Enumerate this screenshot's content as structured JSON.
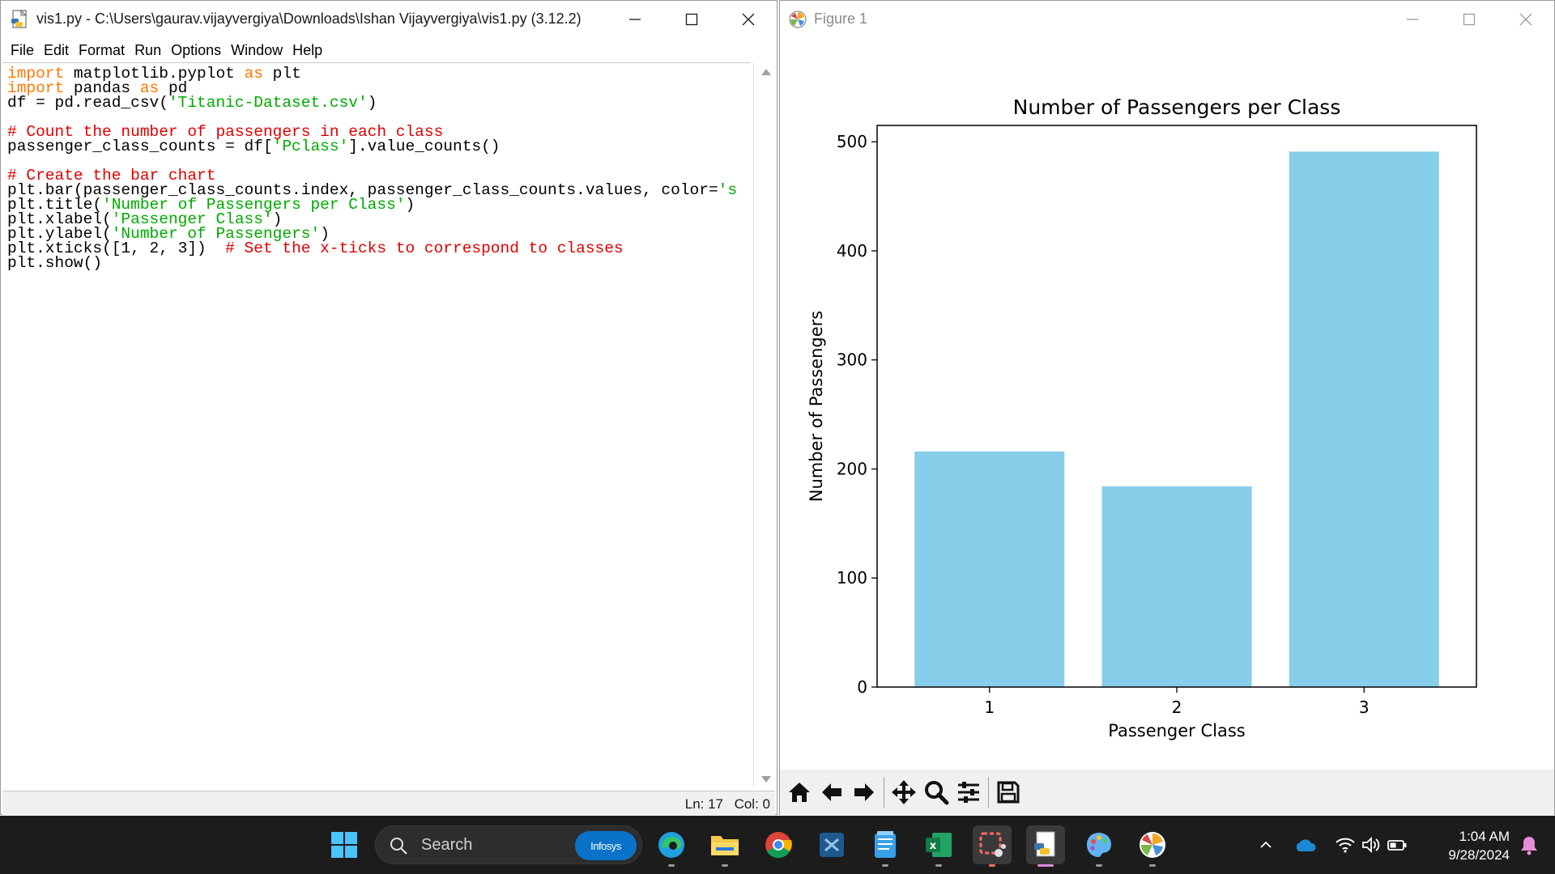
{
  "idle": {
    "title": "vis1.py - C:\\Users\\gaurav.vijayvergiya\\Downloads\\Ishan Vijayvergiya\\vis1.py (3.12.2)",
    "menu": [
      "File",
      "Edit",
      "Format",
      "Run",
      "Options",
      "Window",
      "Help"
    ],
    "code": [
      [
        {
          "t": "import",
          "c": "kw"
        },
        {
          "t": " matplotlib.pyplot "
        },
        {
          "t": "as",
          "c": "kw"
        },
        {
          "t": " plt"
        }
      ],
      [
        {
          "t": "import",
          "c": "kw"
        },
        {
          "t": " pandas "
        },
        {
          "t": "as",
          "c": "kw"
        },
        {
          "t": " pd"
        }
      ],
      [
        {
          "t": "df = pd.read_csv("
        },
        {
          "t": "'Titanic-Dataset.csv'",
          "c": "str"
        },
        {
          "t": ")"
        }
      ],
      [],
      [
        {
          "t": "# Count the number of passengers in each class",
          "c": "cmt"
        }
      ],
      [
        {
          "t": "passenger_class_counts = df["
        },
        {
          "t": "'Pclass'",
          "c": "str"
        },
        {
          "t": "].value_counts()"
        }
      ],
      [],
      [
        {
          "t": "# Create the bar chart",
          "c": "cmt"
        }
      ],
      [
        {
          "t": "plt.bar(passenger_class_counts.index, passenger_class_counts.values, color="
        },
        {
          "t": "'s",
          "c": "str"
        }
      ],
      [
        {
          "t": "plt.title("
        },
        {
          "t": "'Number of Passengers per Class'",
          "c": "str"
        },
        {
          "t": ")"
        }
      ],
      [
        {
          "t": "plt.xlabel("
        },
        {
          "t": "'Passenger Class'",
          "c": "str"
        },
        {
          "t": ")"
        }
      ],
      [
        {
          "t": "plt.ylabel("
        },
        {
          "t": "'Number of Passengers'",
          "c": "str"
        },
        {
          "t": ")"
        }
      ],
      [
        {
          "t": "plt.xticks([1, 2, 3])  "
        },
        {
          "t": "# Set the x-ticks to correspond to classes",
          "c": "cmt"
        }
      ],
      [
        {
          "t": "plt.show()"
        }
      ]
    ],
    "status": {
      "line": "Ln: 17",
      "col": "Col: 0"
    }
  },
  "figure": {
    "title": "Figure 1"
  },
  "chart_data": {
    "type": "bar",
    "title": "Number of Passengers per Class",
    "xlabel": "Passenger Class",
    "ylabel": "Number of Passengers",
    "categories": [
      "1",
      "2",
      "3"
    ],
    "values": [
      216,
      184,
      491
    ],
    "yticks": [
      0,
      100,
      200,
      300,
      400,
      500
    ],
    "ylim": [
      0,
      515
    ],
    "bar_color": "#87ceeb",
    "grid": false
  },
  "taskbar": {
    "search_label": "Search",
    "search_badge": "Infosys",
    "apps": [
      "start-icon",
      "edge-icon",
      "file-explorer-icon",
      "chrome-icon",
      "vscode-icon",
      "notepad-icon",
      "excel-icon",
      "snipping-tool-icon",
      "python-idle-icon",
      "paint-icon",
      "matplotlib-icon"
    ],
    "time": "1:04 AM",
    "date": "9/28/2024"
  }
}
